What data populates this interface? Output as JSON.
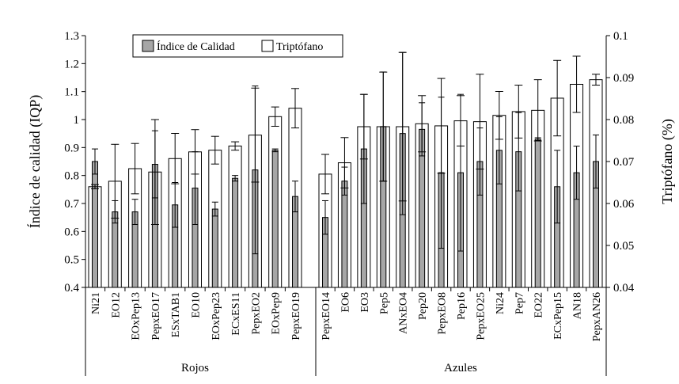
{
  "chart_data": {
    "type": "bar",
    "title": "",
    "ylabel_left": "Índice de calidad (IQP)",
    "ylabel_right": "Triptófano (%)",
    "ylim_left": [
      0.4,
      1.3
    ],
    "yticks_left": [
      "0.4",
      "0.5",
      "0.6",
      "0.7",
      "0.8",
      "0.9",
      "1",
      "1.1",
      "1.2",
      "1.3"
    ],
    "ylim_right": [
      0.04,
      0.1
    ],
    "yticks_right": [
      "0.04",
      "0.05",
      "0.06",
      "0.07",
      "0.08",
      "0.09",
      "0.1"
    ],
    "legend": {
      "position": "top-left",
      "entries": [
        "Índice de Calidad",
        "Triptófano"
      ]
    },
    "groups": [
      {
        "name": "Rojos",
        "start": 0,
        "count": 11
      },
      {
        "name": "Azules",
        "start": 11,
        "count": 15
      }
    ],
    "categories": [
      "Ni21",
      "EO12",
      "EOxPep13",
      "PepxEO17",
      "ESxTAB1",
      "EO10",
      "EOxPep23",
      "ECxES11",
      "PepxEO2",
      "EOxPep9",
      "PepxEO19",
      "PepxEO14",
      "EO6",
      "EO3",
      "Pep5",
      "ANxEO4",
      "Pep20",
      "PepxEO8",
      "Pep16",
      "PepxEO25",
      "Ni24",
      "Pep7",
      "EO22",
      "ECxPep15",
      "AN18",
      "PepxAN26"
    ],
    "series": [
      {
        "name": "Índice de Calidad",
        "axis": "left",
        "values": [
          0.85,
          0.67,
          0.67,
          0.84,
          0.695,
          0.755,
          0.68,
          0.79,
          0.82,
          0.89,
          0.725,
          0.65,
          0.78,
          0.895,
          0.975,
          0.95,
          0.965,
          0.81,
          0.81,
          0.85,
          0.89,
          0.885,
          0.93,
          0.76,
          0.81,
          0.85
        ],
        "errors": [
          0.045,
          0.04,
          0.045,
          0.12,
          0.08,
          0.13,
          0.025,
          0.01,
          0.3,
          0.005,
          0.055,
          0.06,
          0.05,
          0.195,
          0.195,
          0.29,
          0.095,
          0.27,
          0.28,
          0.12,
          0.12,
          0.14,
          0.005,
          0.13,
          0.095,
          0.095
        ]
      },
      {
        "name": "Triptófano",
        "axis": "right",
        "values": [
          0.064,
          0.0653,
          0.0683,
          0.0675,
          0.0707,
          0.0723,
          0.0727,
          0.0737,
          0.0763,
          0.0807,
          0.0827,
          0.067,
          0.0697,
          0.0783,
          0.0783,
          0.0783,
          0.079,
          0.0785,
          0.0797,
          0.0795,
          0.081,
          0.0819,
          0.0822,
          0.0851,
          0.0884,
          0.0895
        ],
        "errors": [
          0.0005,
          0.0088,
          0.006,
          0.0125,
          0.006,
          0.0053,
          0.0033,
          0.001,
          0.0112,
          0.0023,
          0.0047,
          0.0047,
          0.006,
          0.0077,
          0.013,
          0.0177,
          0.0067,
          0.0113,
          0.006,
          0.0113,
          0.0057,
          0.0063,
          0.0073,
          0.009,
          0.0067,
          0.0013
        ]
      }
    ]
  }
}
